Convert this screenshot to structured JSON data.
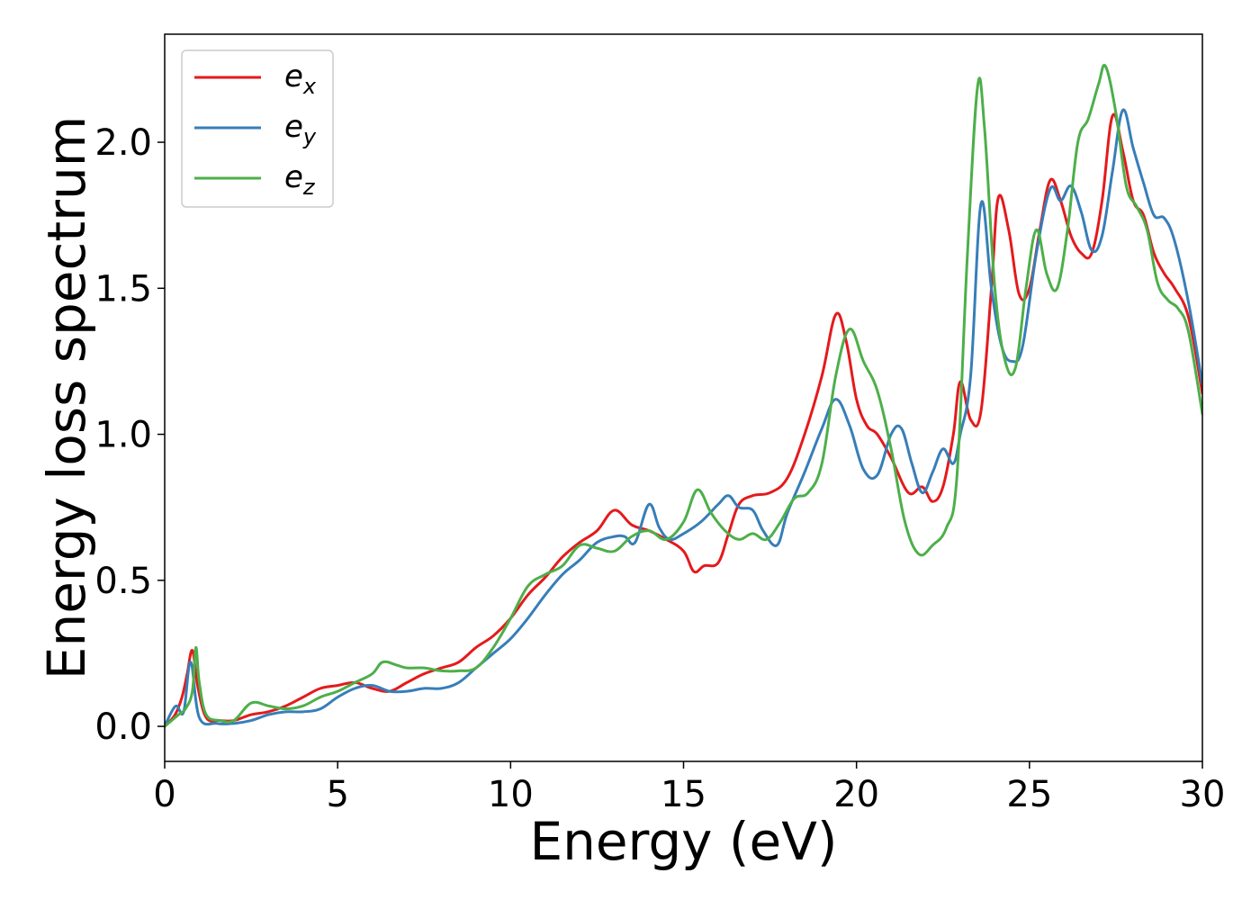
{
  "chart_data": {
    "type": "line",
    "title": "",
    "xlabel": "Energy (eV)",
    "ylabel": "Energy loss spectrum",
    "xlim": [
      0,
      30
    ],
    "ylim": [
      -0.12,
      2.37
    ],
    "xticks": [
      0,
      5,
      10,
      15,
      20,
      25,
      30
    ],
    "xtick_labels": [
      "0",
      "5",
      "10",
      "15",
      "20",
      "25",
      "30"
    ],
    "yticks": [
      0.0,
      0.5,
      1.0,
      1.5,
      2.0
    ],
    "ytick_labels": [
      "0.0",
      "0.5",
      "1.0",
      "1.5",
      "2.0"
    ],
    "grid": false,
    "legend_position": "top-left",
    "series": [
      {
        "name": "e",
        "subscript": "x",
        "color": "#e41a1c",
        "x": [
          0,
          0.3,
          0.5,
          0.65,
          0.8,
          0.95,
          1.2,
          1.6,
          2.0,
          2.5,
          3.0,
          3.5,
          4.0,
          4.5,
          5.0,
          5.5,
          6.0,
          6.5,
          7.0,
          7.5,
          8.0,
          8.5,
          9.0,
          9.5,
          10.0,
          10.5,
          11.0,
          11.5,
          12.0,
          12.5,
          13.0,
          13.5,
          14.0,
          14.5,
          15.0,
          15.3,
          15.6,
          16.0,
          16.3,
          16.6,
          17.0,
          17.5,
          18.0,
          18.5,
          19.0,
          19.4,
          19.7,
          20.0,
          20.3,
          20.6,
          21.0,
          21.5,
          21.9,
          22.2,
          22.5,
          22.8,
          23.0,
          23.3,
          23.6,
          23.9,
          24.1,
          24.4,
          24.7,
          25.0,
          25.3,
          25.6,
          25.9,
          26.2,
          26.5,
          26.8,
          27.1,
          27.4,
          27.7,
          28.0,
          28.3,
          28.6,
          28.9,
          29.2,
          29.6,
          30.0
        ],
        "y": [
          0.0,
          0.04,
          0.1,
          0.18,
          0.26,
          0.14,
          0.03,
          0.02,
          0.02,
          0.04,
          0.05,
          0.07,
          0.1,
          0.13,
          0.14,
          0.15,
          0.13,
          0.12,
          0.15,
          0.18,
          0.2,
          0.22,
          0.27,
          0.31,
          0.37,
          0.45,
          0.51,
          0.58,
          0.63,
          0.67,
          0.74,
          0.69,
          0.67,
          0.64,
          0.6,
          0.53,
          0.55,
          0.56,
          0.66,
          0.76,
          0.79,
          0.8,
          0.85,
          1.0,
          1.2,
          1.41,
          1.32,
          1.12,
          1.03,
          1.0,
          0.92,
          0.8,
          0.82,
          0.77,
          0.82,
          1.0,
          1.18,
          1.05,
          1.08,
          1.5,
          1.81,
          1.7,
          1.48,
          1.5,
          1.7,
          1.87,
          1.8,
          1.68,
          1.62,
          1.62,
          1.8,
          2.09,
          1.97,
          1.8,
          1.75,
          1.62,
          1.55,
          1.5,
          1.4,
          1.14
        ]
      },
      {
        "name": "e",
        "subscript": "y",
        "color": "#377eb8",
        "x": [
          0,
          0.2,
          0.35,
          0.55,
          0.75,
          1.0,
          1.5,
          2.0,
          2.5,
          3.0,
          3.5,
          4.0,
          4.5,
          5.0,
          5.5,
          6.0,
          6.5,
          7.0,
          7.5,
          8.0,
          8.5,
          9.0,
          9.5,
          10.0,
          10.5,
          11.0,
          11.5,
          12.0,
          12.5,
          13.0,
          13.3,
          13.6,
          14.0,
          14.3,
          14.6,
          15.0,
          15.5,
          16.0,
          16.3,
          16.6,
          17.0,
          17.3,
          17.7,
          18.0,
          18.5,
          19.0,
          19.4,
          19.8,
          20.2,
          20.6,
          21.0,
          21.3,
          21.6,
          21.9,
          22.2,
          22.5,
          22.8,
          23.0,
          23.3,
          23.6,
          23.9,
          24.2,
          24.5,
          24.8,
          25.2,
          25.6,
          25.9,
          26.2,
          26.5,
          26.8,
          27.1,
          27.4,
          27.7,
          28.0,
          28.3,
          28.6,
          28.9,
          29.2,
          29.6,
          30.0
        ],
        "y": [
          0.0,
          0.05,
          0.07,
          0.05,
          0.22,
          0.03,
          0.01,
          0.01,
          0.02,
          0.04,
          0.05,
          0.05,
          0.06,
          0.1,
          0.13,
          0.14,
          0.12,
          0.12,
          0.13,
          0.13,
          0.15,
          0.2,
          0.25,
          0.3,
          0.37,
          0.45,
          0.52,
          0.57,
          0.63,
          0.65,
          0.65,
          0.63,
          0.76,
          0.68,
          0.64,
          0.66,
          0.7,
          0.76,
          0.79,
          0.75,
          0.74,
          0.67,
          0.62,
          0.73,
          0.87,
          1.02,
          1.12,
          1.03,
          0.88,
          0.86,
          1.0,
          1.02,
          0.9,
          0.8,
          0.87,
          0.95,
          0.9,
          1.0,
          1.2,
          1.79,
          1.5,
          1.3,
          1.25,
          1.3,
          1.62,
          1.84,
          1.8,
          1.85,
          1.76,
          1.63,
          1.68,
          1.9,
          2.11,
          1.98,
          1.86,
          1.75,
          1.74,
          1.66,
          1.45,
          1.17
        ]
      },
      {
        "name": "e",
        "subscript": "z",
        "color": "#4daf4a",
        "x": [
          0,
          0.4,
          0.6,
          0.8,
          0.9,
          1.0,
          1.2,
          1.6,
          2.0,
          2.5,
          3.0,
          3.5,
          4.0,
          4.5,
          5.0,
          5.5,
          6.0,
          6.3,
          6.7,
          7.0,
          7.5,
          8.0,
          8.5,
          9.0,
          9.5,
          10.0,
          10.5,
          11.0,
          11.5,
          12.0,
          12.5,
          13.0,
          13.5,
          14.0,
          14.5,
          15.0,
          15.4,
          15.8,
          16.2,
          16.6,
          17.0,
          17.4,
          17.8,
          18.2,
          18.6,
          19.0,
          19.4,
          19.8,
          20.2,
          20.6,
          21.0,
          21.4,
          21.8,
          22.2,
          22.6,
          22.9,
          23.2,
          23.5,
          23.7,
          24.0,
          24.3,
          24.6,
          24.9,
          25.2,
          25.5,
          25.8,
          26.1,
          26.4,
          26.7,
          27.0,
          27.2,
          27.5,
          27.8,
          28.1,
          28.4,
          28.7,
          29.0,
          29.3,
          29.6,
          30.0
        ],
        "y": [
          0.0,
          0.04,
          0.06,
          0.12,
          0.27,
          0.15,
          0.04,
          0.02,
          0.02,
          0.08,
          0.07,
          0.06,
          0.07,
          0.1,
          0.12,
          0.15,
          0.18,
          0.22,
          0.21,
          0.2,
          0.2,
          0.19,
          0.19,
          0.2,
          0.27,
          0.37,
          0.48,
          0.52,
          0.55,
          0.62,
          0.61,
          0.6,
          0.65,
          0.67,
          0.64,
          0.7,
          0.81,
          0.73,
          0.67,
          0.64,
          0.66,
          0.64,
          0.7,
          0.78,
          0.8,
          0.9,
          1.2,
          1.36,
          1.25,
          1.15,
          0.95,
          0.7,
          0.59,
          0.62,
          0.68,
          0.85,
          1.6,
          2.19,
          2.05,
          1.5,
          1.25,
          1.23,
          1.5,
          1.7,
          1.55,
          1.5,
          1.7,
          2.0,
          2.08,
          2.2,
          2.26,
          2.1,
          1.85,
          1.78,
          1.7,
          1.52,
          1.46,
          1.43,
          1.35,
          1.07
        ]
      }
    ]
  }
}
